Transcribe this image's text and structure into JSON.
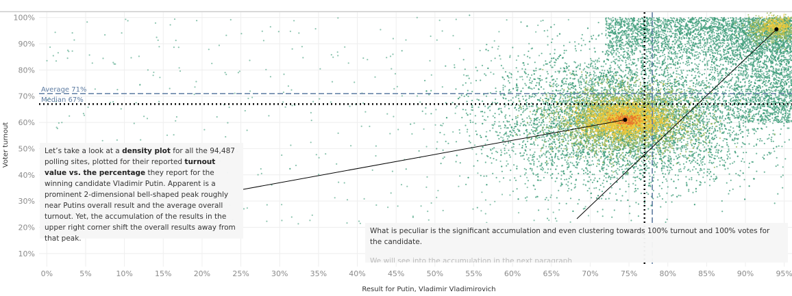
{
  "chart_data": {
    "type": "scatter",
    "title": "",
    "xlabel": "Result for Putin, Vladimir Vladimirovich",
    "ylabel": "Voter turnout",
    "xlim": [
      -1,
      96
    ],
    "ylim": [
      5,
      102
    ],
    "x_ticks": [
      "0%",
      "5%",
      "10%",
      "15%",
      "20%",
      "25%",
      "30%",
      "35%",
      "40%",
      "45%",
      "50%",
      "55%",
      "60%",
      "65%",
      "70%",
      "75%",
      "80%",
      "85%",
      "90%",
      "95%"
    ],
    "y_ticks": [
      "10%",
      "20%",
      "30%",
      "40%",
      "50%",
      "60%",
      "70%",
      "80%",
      "90%",
      "100%"
    ],
    "x_tick_values": [
      0,
      5,
      10,
      15,
      20,
      25,
      30,
      35,
      40,
      45,
      50,
      55,
      60,
      65,
      70,
      75,
      80,
      85,
      90,
      95
    ],
    "y_tick_values": [
      10,
      20,
      30,
      40,
      50,
      60,
      70,
      80,
      90,
      100
    ],
    "grid": true,
    "point_count": 94487,
    "density_peak": {
      "x": 74.5,
      "y": 61
    },
    "corner_peak": {
      "x": 94,
      "y": 95.5
    },
    "reference_lines": [
      {
        "axis": "y",
        "value": 71,
        "label": "Average 71%",
        "style": "dashed",
        "color": "#5b7aa0"
      },
      {
        "axis": "y",
        "value": 67,
        "label": "Median 67%",
        "style": "dotted",
        "color": "#000000"
      },
      {
        "axis": "x",
        "value": 77,
        "label": "",
        "style": "dotted",
        "color": "#000000"
      },
      {
        "axis": "x",
        "value": 78,
        "label": "",
        "style": "dashed",
        "color": "#5b7aa0"
      }
    ],
    "colors": {
      "low": "#3e9c7a",
      "mid": "#9bb85a",
      "high": "#f0c93a",
      "peak": "#e8762e",
      "grid": "#eeeeee"
    }
  },
  "annotations": {
    "left": {
      "p1": "Let’s take a look at a ",
      "b1": "density plot",
      "p2": " for all the 94,487 polling sites, plotted for their reported ",
      "b2": "turnout value vs. the percentage",
      "p3": " they report for the winning candidate Vladimir Putin. Apparent is a prominent 2-dimensional bell-shaped peak roughly near Putins overall result and the average overall turnout. Yet, the accumulation of the results in the upper right corner shift the overall results away from that peak."
    },
    "right": {
      "text": "What is peculiar is the significant accumulation and even clustering towards 100% turnout and 100% votes for the candidate.",
      "faded": "We will see into the accumulation in the next paragraph"
    }
  }
}
